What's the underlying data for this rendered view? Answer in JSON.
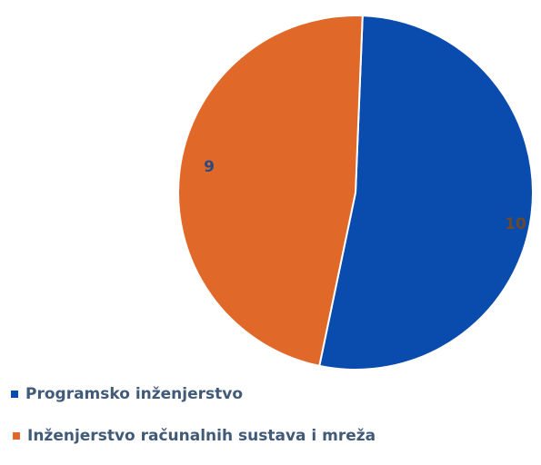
{
  "chart_data": {
    "type": "pie",
    "slices": [
      {
        "label": "Programsko inženjerstvo",
        "value": 10,
        "color": "#0a4cad"
      },
      {
        "label": "Inženjerstvo računalnih sustava i mreža",
        "value": 9,
        "color": "#e0692a"
      }
    ],
    "data_labels": [
      "10",
      "9"
    ],
    "legend_position": "bottom-left"
  }
}
